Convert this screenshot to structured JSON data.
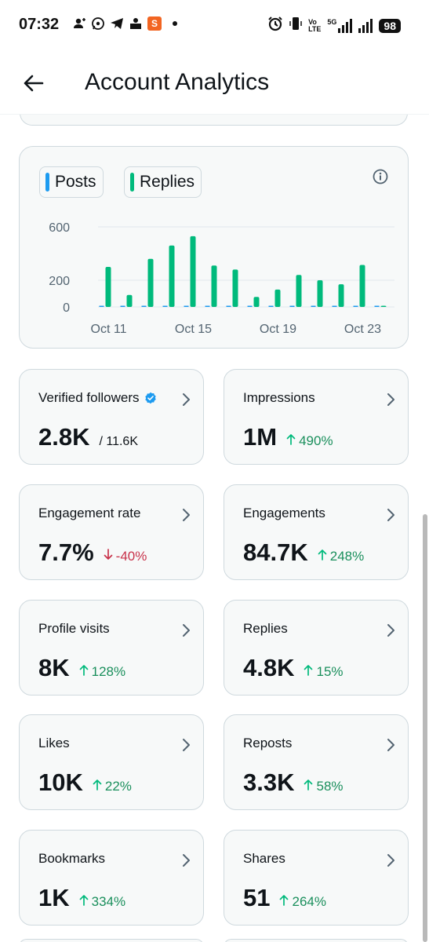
{
  "status_bar": {
    "time": "07:32",
    "left_icons": [
      "add-user-icon",
      "whatsapp-icon",
      "telegram-icon",
      "news-icon",
      "s-app-icon"
    ],
    "network_label_top": "Vo",
    "network_label_bottom": "LTE",
    "fiveg_label": "5G",
    "battery": "98"
  },
  "header": {
    "title": "Account Analytics"
  },
  "chart": {
    "legend": [
      {
        "label": "Posts",
        "color": "#1d9bf0"
      },
      {
        "label": "Replies",
        "color": "#00ba7c"
      }
    ]
  },
  "chart_data": {
    "type": "bar",
    "categories": [
      "Oct 11",
      "Oct 12",
      "Oct 13",
      "Oct 14",
      "Oct 15",
      "Oct 16",
      "Oct 17",
      "Oct 18",
      "Oct 19",
      "Oct 20",
      "Oct 21",
      "Oct 22",
      "Oct 23",
      "Oct 24"
    ],
    "x_tick_labels": [
      "Oct 11",
      "Oct 15",
      "Oct 19",
      "Oct 23"
    ],
    "y_tick_labels": [
      "600",
      "200",
      "0"
    ],
    "ylim": [
      0,
      600
    ],
    "series": [
      {
        "name": "Posts",
        "color": "#1d9bf0",
        "values": [
          2,
          0,
          0,
          4,
          3,
          0,
          6,
          0,
          0,
          0,
          0,
          0,
          0,
          0
        ]
      },
      {
        "name": "Replies",
        "color": "#00ba7c",
        "values": [
          300,
          90,
          360,
          460,
          530,
          310,
          280,
          75,
          130,
          240,
          200,
          170,
          315,
          0
        ]
      }
    ],
    "grid": true
  },
  "stats": [
    {
      "label": "Verified followers",
      "value": "2.8K",
      "sub": "/ 11.6K",
      "trend": "none",
      "verified": true
    },
    {
      "label": "Impressions",
      "value": "1M",
      "sub": "490%",
      "trend": "up"
    },
    {
      "label": "Engagement rate",
      "value": "7.7%",
      "sub": "-40%",
      "trend": "down"
    },
    {
      "label": "Engagements",
      "value": "84.7K",
      "sub": "248%",
      "trend": "up"
    },
    {
      "label": "Profile visits",
      "value": "8K",
      "sub": "128%",
      "trend": "up"
    },
    {
      "label": "Replies",
      "value": "4.8K",
      "sub": "15%",
      "trend": "up"
    },
    {
      "label": "Likes",
      "value": "10K",
      "sub": "22%",
      "trend": "up"
    },
    {
      "label": "Reposts",
      "value": "3.3K",
      "sub": "58%",
      "trend": "up"
    },
    {
      "label": "Bookmarks",
      "value": "1K",
      "sub": "334%",
      "trend": "up"
    },
    {
      "label": "Shares",
      "value": "51",
      "sub": "264%",
      "trend": "up"
    }
  ],
  "colors": {
    "posts": "#1d9bf0",
    "replies": "#00ba7c",
    "up": "#00ba7c",
    "down": "#c8324a",
    "verified": "#1d9bf0"
  }
}
